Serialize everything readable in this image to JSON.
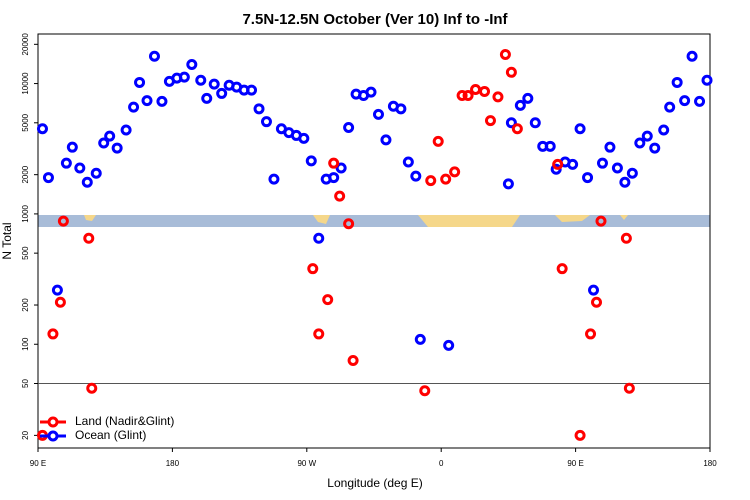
{
  "chart_data": {
    "type": "scatter",
    "title": "7.5N-12.5N October (Ver 10)   Inf to -Inf",
    "xlabel": "Longitude (deg E)",
    "ylabel": "N Total",
    "xlim": [
      90,
      540
    ],
    "xticks": [
      {
        "value": 90,
        "label": "90 E"
      },
      {
        "value": 180,
        "label": "180"
      },
      {
        "value": 270,
        "label": "90 W"
      },
      {
        "value": 360,
        "label": "0"
      },
      {
        "value": 450,
        "label": "90 E"
      },
      {
        "value": 540,
        "label": "180"
      }
    ],
    "ylim": [
      16,
      24000
    ],
    "yscale": "log",
    "yticks": [
      20,
      50,
      100,
      200,
      500,
      1000,
      2000,
      5000,
      10000,
      20000
    ],
    "hline": 50,
    "legend": "lower left",
    "series": [
      {
        "name": "Land (Nadir&Glint)",
        "color": "#ff0000",
        "x": [
          93,
          100,
          105,
          107,
          124,
          126,
          274,
          278,
          284,
          288,
          292,
          298,
          301,
          349,
          353,
          358,
          363,
          369,
          374,
          378,
          383,
          389,
          393,
          398,
          403,
          407,
          411,
          438,
          441,
          453,
          460,
          464,
          467,
          484,
          486
        ],
        "values": [
          20,
          120,
          210,
          880,
          650,
          46,
          380,
          120,
          220,
          2450,
          1370,
          840,
          75,
          44,
          1800,
          3600,
          1850,
          2100,
          8100,
          8100,
          9000,
          8700,
          5200,
          7900,
          16700,
          12200,
          4500,
          2400,
          380,
          20,
          120,
          210,
          880,
          650,
          46
        ]
      },
      {
        "name": "Ocean (Glint)",
        "color": "#0000ff",
        "x": [
          93,
          97,
          103,
          109,
          113,
          118,
          123,
          129,
          134,
          138,
          143,
          149,
          154,
          158,
          163,
          168,
          173,
          178,
          183,
          188,
          193,
          199,
          203,
          208,
          213,
          218,
          223,
          228,
          233,
          238,
          243,
          248,
          253,
          258,
          263,
          268,
          273,
          278,
          283,
          288,
          293,
          298,
          303,
          308,
          313,
          318,
          323,
          328,
          333,
          338,
          343,
          346,
          365,
          405,
          407,
          413,
          418,
          423,
          428,
          433,
          437,
          443,
          448,
          453,
          458,
          462,
          468,
          473,
          478,
          483,
          488,
          493,
          498,
          503,
          509,
          513,
          518,
          523,
          528,
          533,
          538
        ],
        "values": [
          4500,
          1900,
          260,
          2450,
          3250,
          2250,
          1750,
          2050,
          3500,
          3950,
          3200,
          4400,
          6600,
          10200,
          7400,
          16200,
          7300,
          10400,
          11000,
          11200,
          14000,
          10600,
          7700,
          9900,
          8400,
          9700,
          9400,
          8900,
          8900,
          6400,
          5100,
          1850,
          4500,
          4200,
          4000,
          3800,
          2550,
          650,
          1850,
          1900,
          2250,
          4600,
          8300,
          8100,
          8600,
          5800,
          3700,
          6700,
          6400,
          2500,
          1950,
          109,
          98,
          1700,
          5000,
          6800,
          7700,
          5000,
          3300,
          3300,
          2200,
          2500,
          2400,
          4500,
          1900,
          260,
          2450,
          3250,
          2250,
          1750,
          2050,
          3500,
          3950,
          3200,
          4400,
          6600,
          10200,
          7400,
          16200,
          7300,
          10600
        ]
      }
    ]
  }
}
